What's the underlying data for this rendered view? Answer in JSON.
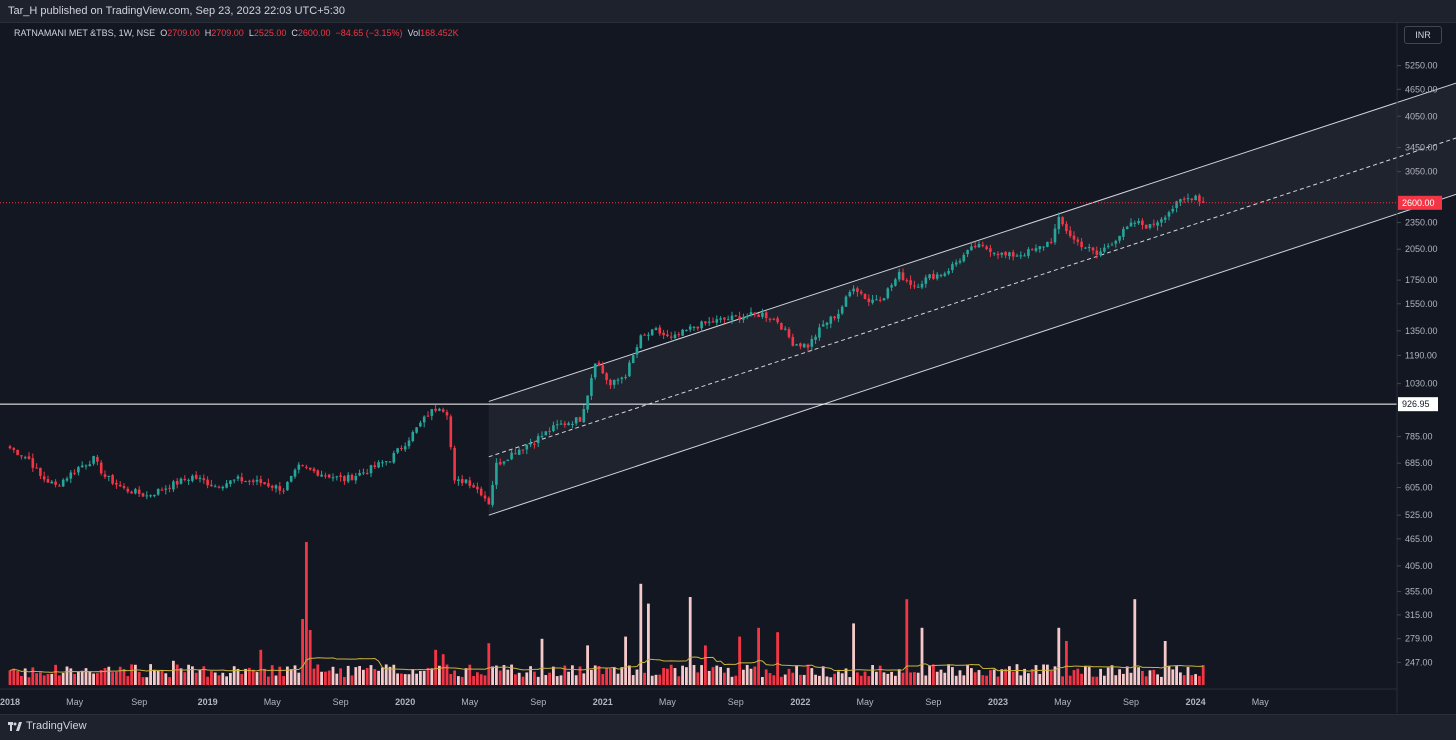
{
  "header": {
    "publisher": "Tar_H published on TradingView.com, Sep 23, 2023 22:03 UTC+5:30"
  },
  "legend": {
    "symbol": "RATNAMANI MET &TBS, 1W, NSE",
    "open_label": "O",
    "open": "2709.00",
    "high_label": "H",
    "high": "2709.00",
    "low_label": "L",
    "low": "2525.00",
    "close_label": "C",
    "close": "2600.00",
    "change": "−84.65 (−3.15%)",
    "vol_label": "Vol",
    "vol": "168.452K"
  },
  "currency": "INR",
  "footer": {
    "brand": "TradingView"
  },
  "colors": {
    "up": "#26a69a",
    "down": "#f23645",
    "vol_up": "#f5c9c9",
    "vol_down": "#f23645",
    "vol_ma": "#c9b43a",
    "background": "#131722"
  },
  "chart_data": {
    "type": "candlestick",
    "symbol": "RATNAMANI MET &TBS",
    "interval": "1W",
    "exchange": "NSE",
    "y_scale": "log",
    "yticks": [
      "5250.00",
      "4650.00",
      "4050.00",
      "3450.00",
      "3050.00",
      "2350.00",
      "2050.00",
      "1750.00",
      "1550.00",
      "1350.00",
      "1190.00",
      "1030.00",
      "785.00",
      "685.00",
      "605.00",
      "525.00",
      "465.00",
      "405.00",
      "355.00",
      "315.00",
      "279.00",
      "247.00"
    ],
    "ylim": [
      220,
      5600
    ],
    "x_ticks": [
      "2018",
      "May",
      "Sep",
      "2019",
      "May",
      "Sep",
      "2020",
      "May",
      "Sep",
      "2021",
      "May",
      "Sep",
      "2022",
      "May",
      "Sep",
      "2023",
      "May",
      "Sep",
      "2024",
      "May"
    ],
    "price_label": "2600.00",
    "level_label": "926.95",
    "horizontal_level": 926.95,
    "last_close": 2600,
    "anchors": [
      {
        "i": 0,
        "p": 740
      },
      {
        "i": 5,
        "p": 700
      },
      {
        "i": 8,
        "p": 640
      },
      {
        "i": 12,
        "p": 610
      },
      {
        "i": 18,
        "p": 670
      },
      {
        "i": 22,
        "p": 700
      },
      {
        "i": 25,
        "p": 640
      },
      {
        "i": 30,
        "p": 600
      },
      {
        "i": 36,
        "p": 580
      },
      {
        "i": 42,
        "p": 610
      },
      {
        "i": 48,
        "p": 640
      },
      {
        "i": 54,
        "p": 610
      },
      {
        "i": 60,
        "p": 630
      },
      {
        "i": 66,
        "p": 620
      },
      {
        "i": 72,
        "p": 600
      },
      {
        "i": 76,
        "p": 670
      },
      {
        "i": 82,
        "p": 650
      },
      {
        "i": 88,
        "p": 630
      },
      {
        "i": 94,
        "p": 660
      },
      {
        "i": 100,
        "p": 700
      },
      {
        "i": 104,
        "p": 760
      },
      {
        "i": 110,
        "p": 880
      },
      {
        "i": 113,
        "p": 920
      },
      {
        "i": 115,
        "p": 890
      },
      {
        "i": 117,
        "p": 620
      },
      {
        "i": 120,
        "p": 630
      },
      {
        "i": 124,
        "p": 590
      },
      {
        "i": 126,
        "p": 560
      },
      {
        "i": 128,
        "p": 680
      },
      {
        "i": 132,
        "p": 720
      },
      {
        "i": 138,
        "p": 770
      },
      {
        "i": 144,
        "p": 830
      },
      {
        "i": 150,
        "p": 860
      },
      {
        "i": 152,
        "p": 980
      },
      {
        "i": 154,
        "p": 1160
      },
      {
        "i": 158,
        "p": 1020
      },
      {
        "i": 162,
        "p": 1080
      },
      {
        "i": 166,
        "p": 1300
      },
      {
        "i": 170,
        "p": 1350
      },
      {
        "i": 174,
        "p": 1290
      },
      {
        "i": 180,
        "p": 1380
      },
      {
        "i": 186,
        "p": 1420
      },
      {
        "i": 192,
        "p": 1450
      },
      {
        "i": 198,
        "p": 1470
      },
      {
        "i": 202,
        "p": 1420
      },
      {
        "i": 206,
        "p": 1270
      },
      {
        "i": 210,
        "p": 1250
      },
      {
        "i": 214,
        "p": 1390
      },
      {
        "i": 218,
        "p": 1480
      },
      {
        "i": 222,
        "p": 1700
      },
      {
        "i": 226,
        "p": 1570
      },
      {
        "i": 230,
        "p": 1620
      },
      {
        "i": 234,
        "p": 1800
      },
      {
        "i": 238,
        "p": 1700
      },
      {
        "i": 242,
        "p": 1780
      },
      {
        "i": 246,
        "p": 1820
      },
      {
        "i": 250,
        "p": 1950
      },
      {
        "i": 254,
        "p": 2080
      },
      {
        "i": 258,
        "p": 2050
      },
      {
        "i": 262,
        "p": 1980
      },
      {
        "i": 266,
        "p": 2000
      },
      {
        "i": 270,
        "p": 2040
      },
      {
        "i": 274,
        "p": 2150
      },
      {
        "i": 276,
        "p": 2380
      },
      {
        "i": 280,
        "p": 2150
      },
      {
        "i": 284,
        "p": 2050
      },
      {
        "i": 286,
        "p": 1990
      },
      {
        "i": 290,
        "p": 2130
      },
      {
        "i": 294,
        "p": 2280
      },
      {
        "i": 296,
        "p": 2350
      },
      {
        "i": 300,
        "p": 2300
      },
      {
        "i": 304,
        "p": 2450
      },
      {
        "i": 308,
        "p": 2620
      },
      {
        "i": 312,
        "p": 2700
      },
      {
        "i": 314,
        "p": 2600
      }
    ],
    "volume_spikes": [
      {
        "i": 78,
        "v": 6.5
      },
      {
        "i": 77,
        "v": 3.0
      },
      {
        "i": 79,
        "v": 2.5
      },
      {
        "i": 66,
        "v": 1.6
      },
      {
        "i": 43,
        "v": 1.1
      },
      {
        "i": 112,
        "v": 1.6
      },
      {
        "i": 114,
        "v": 1.4
      },
      {
        "i": 126,
        "v": 1.9
      },
      {
        "i": 140,
        "v": 2.1
      },
      {
        "i": 152,
        "v": 1.8
      },
      {
        "i": 162,
        "v": 2.2
      },
      {
        "i": 166,
        "v": 4.6
      },
      {
        "i": 168,
        "v": 3.7
      },
      {
        "i": 179,
        "v": 4.0
      },
      {
        "i": 183,
        "v": 1.8
      },
      {
        "i": 192,
        "v": 2.2
      },
      {
        "i": 197,
        "v": 2.6
      },
      {
        "i": 202,
        "v": 2.4
      },
      {
        "i": 222,
        "v": 2.8
      },
      {
        "i": 236,
        "v": 3.9
      },
      {
        "i": 240,
        "v": 2.6
      },
      {
        "i": 276,
        "v": 2.6
      },
      {
        "i": 278,
        "v": 2.0
      },
      {
        "i": 296,
        "v": 3.9
      },
      {
        "i": 304,
        "v": 2.0
      }
    ],
    "channel": {
      "start_index": 126,
      "end_index": 396,
      "lower_start": 525,
      "lower_end": 3000,
      "upper_start": 940,
      "upper_end": 5300,
      "mid_start": 708,
      "mid_end": 4000
    }
  }
}
